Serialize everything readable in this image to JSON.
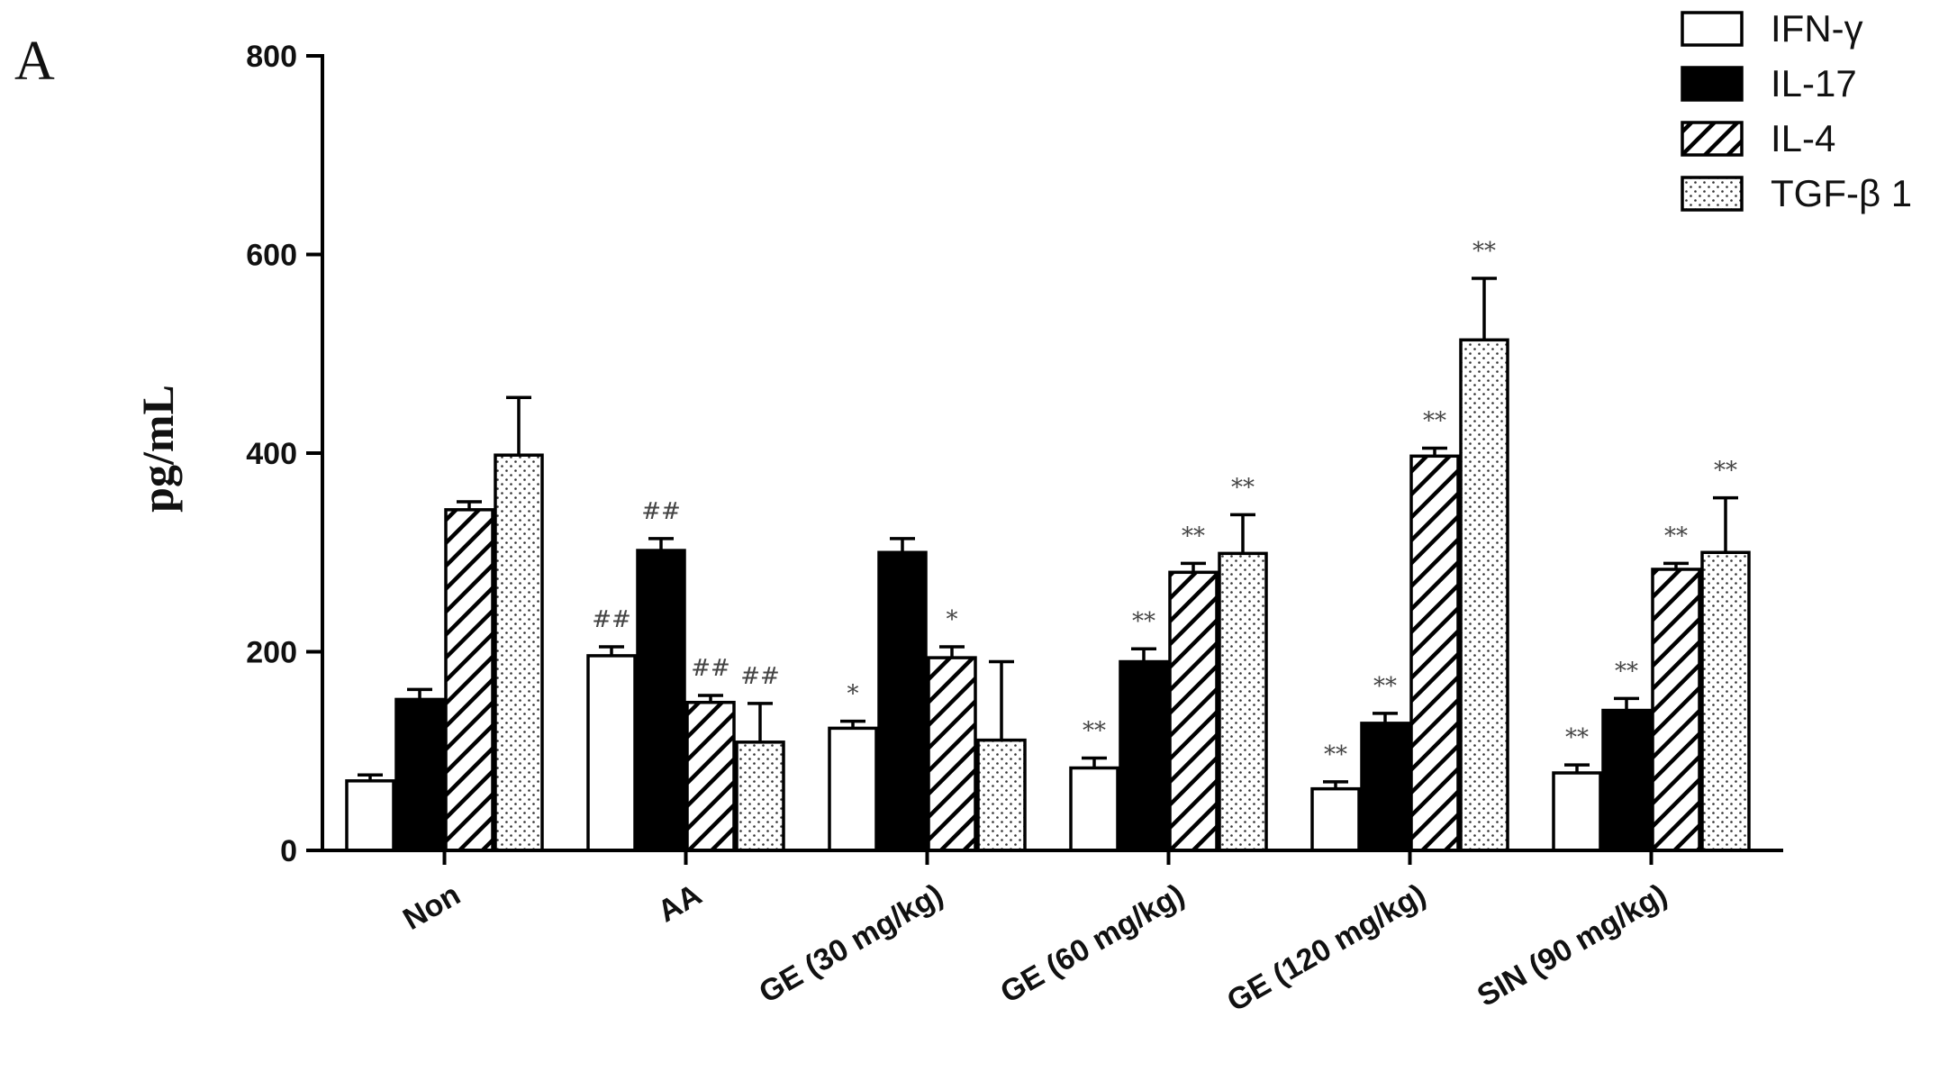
{
  "chart_data": {
    "type": "bar",
    "panel_label": "A",
    "title": "",
    "xlabel": "",
    "ylabel": "pg/mL",
    "ylim": [
      0,
      800
    ],
    "yticks": [
      "0",
      "200",
      "400",
      "600",
      "800"
    ],
    "grid": false,
    "legend_position": "top-right",
    "categories": [
      "Non",
      "AA",
      "GE (30 mg/kg)",
      "GE (60 mg/kg)",
      "GE (120 mg/kg)",
      "SIN (90 mg/kg)"
    ],
    "series": [
      {
        "name": "IFN-γ",
        "pattern": "white",
        "values": [
          70,
          196,
          123,
          83,
          62,
          78
        ],
        "errors": [
          6,
          9,
          7,
          10,
          7,
          8
        ],
        "annotations": [
          "",
          "##",
          "*",
          "**",
          "**",
          "**"
        ]
      },
      {
        "name": "IL-17",
        "pattern": "black",
        "values": [
          152,
          302,
          300,
          190,
          128,
          141
        ],
        "errors": [
          10,
          12,
          14,
          13,
          10,
          12
        ],
        "annotations": [
          "",
          "##",
          "",
          "**",
          "**",
          "**"
        ]
      },
      {
        "name": "IL-4",
        "pattern": "hatched",
        "values": [
          343,
          149,
          194,
          280,
          397,
          283
        ],
        "errors": [
          8,
          7,
          11,
          9,
          8,
          6
        ],
        "annotations": [
          "",
          "##",
          "*",
          "**",
          "**",
          "**"
        ]
      },
      {
        "name": "TGF-β 1",
        "pattern": "dotted",
        "values": [
          398,
          109,
          111,
          299,
          514,
          300
        ],
        "errors": [
          58,
          39,
          79,
          39,
          62,
          55
        ],
        "annotations": [
          "",
          "##",
          "",
          "**",
          "**",
          "**"
        ]
      }
    ]
  }
}
